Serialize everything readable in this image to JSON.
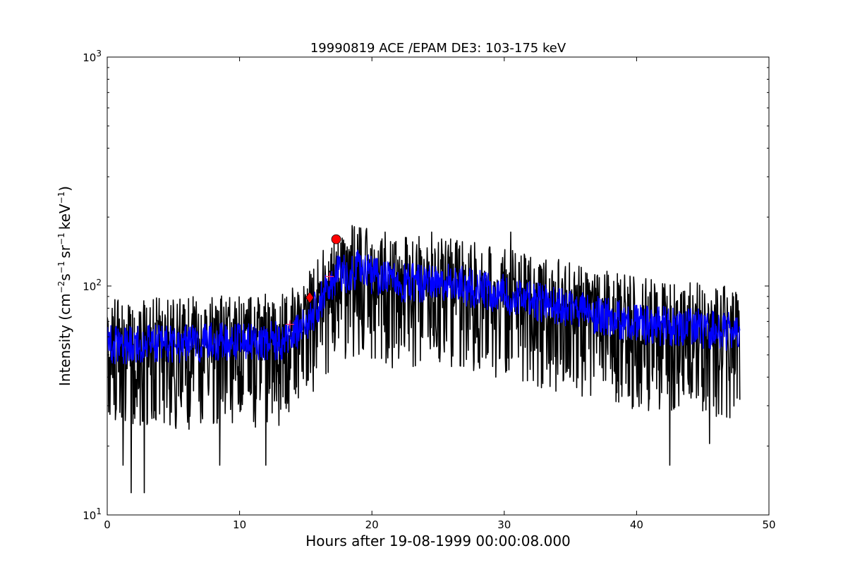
{
  "chart_data": {
    "type": "line",
    "title": "19990819 ACE /EPAM DE3: 103-175 keV",
    "xlabel": "Hours after 19-08-1999 00:00:08.000",
    "ylabel": {
      "prefix": "Intensity (cm",
      "exp1": "−2",
      "part2": "s",
      "exp2": "−1",
      "part3": "sr",
      "exp3": "−1",
      "part4": "keV",
      "exp4": "−1",
      "suffix": ")"
    },
    "xlim": [
      0,
      50
    ],
    "ylim": [
      10,
      1000
    ],
    "yscale": "log",
    "xticks": [
      0,
      10,
      20,
      30,
      40,
      50
    ],
    "xtick_labels": [
      "0",
      "10",
      "20",
      "30",
      "40",
      "50"
    ],
    "yticks": [
      10,
      100,
      1000
    ],
    "ytick_labels": [
      {
        "base": "10",
        "exp": "1"
      },
      {
        "base": "10",
        "exp": "2"
      },
      {
        "base": "10",
        "exp": "3"
      }
    ],
    "grid": false,
    "series": [
      {
        "style": "raw",
        "color": "#000000",
        "x_range": [
          0,
          47.8
        ],
        "profile": [
          [
            0,
            55
          ],
          [
            13.5,
            58
          ],
          [
            15.5,
            75
          ],
          [
            17.2,
            110
          ],
          [
            19,
            118
          ],
          [
            22,
            102
          ],
          [
            25,
            105
          ],
          [
            30,
            92
          ],
          [
            35,
            80
          ],
          [
            40,
            68
          ],
          [
            45,
            65
          ],
          [
            47.8,
            62
          ]
        ],
        "spread": {
          "up": 1.6,
          "down": 0.42
        },
        "extremes": [
          [
            1.2,
            16.5
          ],
          [
            1.8,
            12.5
          ],
          [
            2.8,
            12.5
          ],
          [
            8.5,
            16.5
          ],
          [
            12.0,
            16.5
          ],
          [
            42.5,
            16.5
          ],
          [
            45.5,
            20.5
          ],
          [
            30.5,
            172
          ],
          [
            24.5,
            172
          ],
          [
            21.0,
            172
          ]
        ]
      },
      {
        "style": "smoothed",
        "color": "#0000ff",
        "x_range": [
          0,
          47.8
        ],
        "profile": [
          [
            0,
            55
          ],
          [
            13.5,
            58
          ],
          [
            15.5,
            75
          ],
          [
            17.2,
            110
          ],
          [
            19,
            118
          ],
          [
            22,
            102
          ],
          [
            25,
            105
          ],
          [
            30,
            92
          ],
          [
            35,
            80
          ],
          [
            40,
            68
          ],
          [
            45,
            65
          ],
          [
            47.8,
            62
          ]
        ],
        "spread": {
          "up": 1.22,
          "down": 0.82
        }
      }
    ],
    "markers": [
      {
        "shape": "plus",
        "x": 13.8,
        "y": 68,
        "color": "#ff3366"
      },
      {
        "shape": "diamond",
        "x": 15.3,
        "y": 89,
        "color": "#ff0000"
      },
      {
        "shape": "plus",
        "x": 16.8,
        "y": 110,
        "color": "#ff3366"
      },
      {
        "shape": "circle",
        "x": 17.3,
        "y": 160,
        "color": "#ff0000"
      }
    ]
  }
}
